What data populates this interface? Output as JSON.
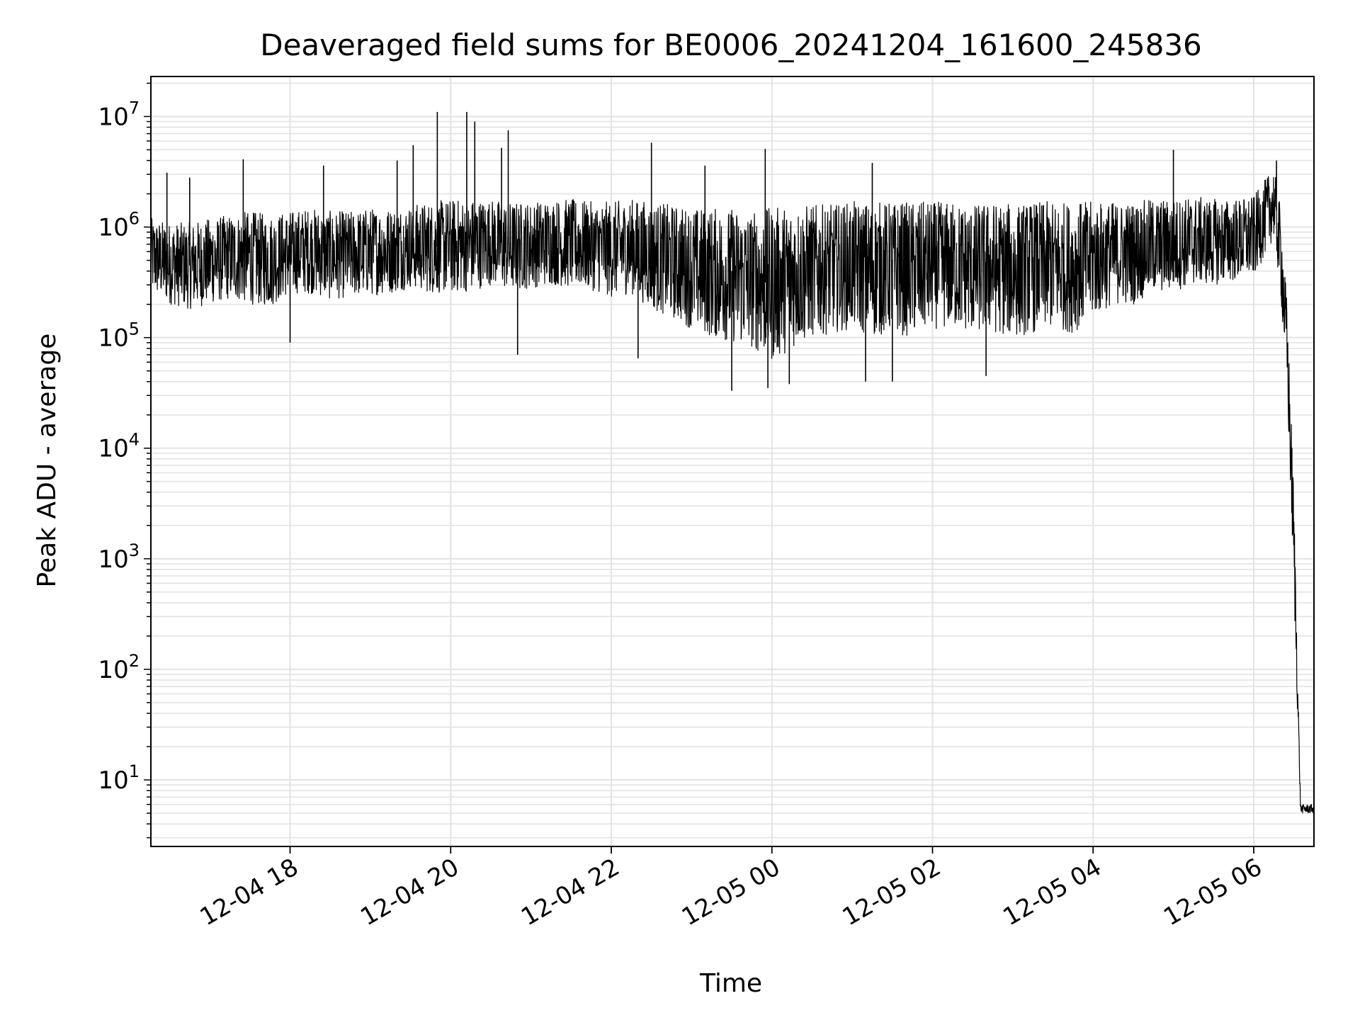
{
  "chart_data": {
    "type": "line",
    "title": "Deaveraged field sums for BE0006_20241204_161600_245836",
    "xlabel": "Time",
    "ylabel": "Peak ADU - average",
    "y_scale": "log",
    "grid": true,
    "legend": "none",
    "x_range": [
      "2024-12-04 16:16",
      "2024-12-05 06:45"
    ],
    "ylim": [
      2.5,
      23000000
    ],
    "x_tick_labels": [
      {
        "at": "2024-12-04 18:00",
        "label": "12-04 18"
      },
      {
        "at": "2024-12-04 20:00",
        "label": "12-04 20"
      },
      {
        "at": "2024-12-04 22:00",
        "label": "12-04 22"
      },
      {
        "at": "2024-12-05 00:00",
        "label": "12-05 00"
      },
      {
        "at": "2024-12-05 02:00",
        "label": "12-05 02"
      },
      {
        "at": "2024-12-05 04:00",
        "label": "12-05 04"
      },
      {
        "at": "2024-12-05 06:00",
        "label": "12-05 06"
      }
    ],
    "y_tick_labels": [
      {
        "base": "10",
        "exp": "1",
        "value": 10
      },
      {
        "base": "10",
        "exp": "2",
        "value": 100
      },
      {
        "base": "10",
        "exp": "3",
        "value": 1000
      },
      {
        "base": "10",
        "exp": "4",
        "value": 10000
      },
      {
        "base": "10",
        "exp": "5",
        "value": 100000
      },
      {
        "base": "10",
        "exp": "6",
        "value": 1000000
      },
      {
        "base": "10",
        "exp": "7",
        "value": 10000000
      }
    ],
    "series_color": "#000000",
    "series": [
      {
        "x": [
          "2024-12-04 16:16",
          "2024-12-04 16:30",
          "2024-12-04 16:45",
          "2024-12-04 17:00",
          "2024-12-04 17:15",
          "2024-12-04 17:30",
          "2024-12-04 17:45",
          "2024-12-04 18:00",
          "2024-12-04 18:15",
          "2024-12-04 18:30",
          "2024-12-04 18:45",
          "2024-12-04 19:00",
          "2024-12-04 19:15",
          "2024-12-04 19:30",
          "2024-12-04 19:45",
          "2024-12-04 20:00",
          "2024-12-04 20:15",
          "2024-12-04 20:30",
          "2024-12-04 20:45",
          "2024-12-04 21:00",
          "2024-12-04 21:15",
          "2024-12-04 21:30",
          "2024-12-04 21:45",
          "2024-12-04 22:00",
          "2024-12-04 22:15",
          "2024-12-04 22:30",
          "2024-12-04 22:45",
          "2024-12-04 23:00",
          "2024-12-04 23:15",
          "2024-12-04 23:30",
          "2024-12-04 23:45",
          "2024-12-05 00:00",
          "2024-12-05 00:15",
          "2024-12-05 00:30",
          "2024-12-05 00:45",
          "2024-12-05 01:00",
          "2024-12-05 01:15",
          "2024-12-05 01:30",
          "2024-12-05 01:45",
          "2024-12-05 02:00",
          "2024-12-05 02:15",
          "2024-12-05 02:30",
          "2024-12-05 02:45",
          "2024-12-05 03:00",
          "2024-12-05 03:15",
          "2024-12-05 03:30",
          "2024-12-05 03:45",
          "2024-12-05 04:00",
          "2024-12-05 04:15",
          "2024-12-05 04:30",
          "2024-12-05 04:45",
          "2024-12-05 05:00",
          "2024-12-05 05:15",
          "2024-12-05 05:30",
          "2024-12-05 05:45",
          "2024-12-05 06:00",
          "2024-12-05 06:15",
          "2024-12-05 06:20",
          "2024-12-05 06:25",
          "2024-12-05 06:30",
          "2024-12-05 06:35",
          "2024-12-05 06:40",
          "2024-12-05 06:45"
        ],
        "y": [
          600000,
          500000,
          450000,
          500000,
          550000,
          600000,
          550000,
          600000,
          650000,
          550000,
          600000,
          600000,
          650000,
          700000,
          650000,
          700000,
          700000,
          750000,
          700000,
          700000,
          750000,
          700000,
          700000,
          650000,
          700000,
          600000,
          500000,
          450000,
          400000,
          400000,
          350000,
          300000,
          400000,
          450000,
          450000,
          500000,
          500000,
          500000,
          450000,
          500000,
          500000,
          450000,
          500000,
          450000,
          500000,
          500000,
          450000,
          550000,
          600000,
          600000,
          650000,
          650000,
          700000,
          700000,
          750000,
          800000,
          2500000,
          600000,
          40000,
          900,
          5,
          5,
          5
        ],
        "y_low": [
          250000,
          200000,
          180000,
          200000,
          220000,
          200000,
          190000,
          250000,
          250000,
          220000,
          230000,
          240000,
          250000,
          280000,
          250000,
          250000,
          260000,
          300000,
          260000,
          280000,
          300000,
          280000,
          270000,
          230000,
          250000,
          180000,
          150000,
          120000,
          100000,
          90000,
          80000,
          60000,
          80000,
          100000,
          110000,
          120000,
          100000,
          110000,
          100000,
          120000,
          120000,
          110000,
          110000,
          100000,
          110000,
          120000,
          110000,
          150000,
          200000,
          200000,
          250000,
          260000,
          300000,
          300000,
          320000,
          350000,
          800000,
          250000,
          30000,
          500,
          5,
          5,
          5
        ],
        "y_high": [
          1200000,
          1100000,
          1100000,
          1200000,
          1300000,
          1400000,
          1300000,
          1400000,
          1500000,
          1400000,
          1400000,
          1500000,
          1500000,
          1600000,
          1700000,
          1800000,
          1800000,
          1800000,
          1700000,
          1700000,
          1800000,
          1800000,
          1700000,
          1700000,
          1800000,
          1700000,
          1600000,
          1500000,
          1500000,
          1500000,
          1400000,
          1500000,
          1600000,
          1600000,
          1600000,
          1700000,
          1700000,
          1700000,
          1700000,
          1700000,
          1700000,
          1600000,
          1700000,
          1600000,
          1700000,
          1700000,
          1700000,
          1700000,
          1700000,
          1700000,
          1800000,
          1800000,
          1900000,
          1800000,
          1800000,
          1900000,
          3500000,
          1500000,
          200000,
          4000,
          6,
          6,
          6
        ],
        "spikes": [
          {
            "x": "2024-12-04 16:28",
            "y": 3100000
          },
          {
            "x": "2024-12-04 16:45",
            "y": 2800000
          },
          {
            "x": "2024-12-04 17:25",
            "y": 4100000
          },
          {
            "x": "2024-12-04 18:25",
            "y": 3600000
          },
          {
            "x": "2024-12-04 19:20",
            "y": 4000000
          },
          {
            "x": "2024-12-04 19:32",
            "y": 5500000
          },
          {
            "x": "2024-12-04 19:50",
            "y": 11000000
          },
          {
            "x": "2024-12-04 20:12",
            "y": 11000000
          },
          {
            "x": "2024-12-04 20:18",
            "y": 9000000
          },
          {
            "x": "2024-12-04 20:38",
            "y": 5200000
          },
          {
            "x": "2024-12-04 20:43",
            "y": 7500000
          },
          {
            "x": "2024-12-04 22:30",
            "y": 5800000
          },
          {
            "x": "2024-12-04 23:10",
            "y": 3600000
          },
          {
            "x": "2024-12-04 23:55",
            "y": 5100000
          },
          {
            "x": "2024-12-05 01:15",
            "y": 3800000
          },
          {
            "x": "2024-12-05 05:00",
            "y": 5000000
          },
          {
            "x": "2024-12-05 06:17",
            "y": 4000000
          }
        ],
        "dips": [
          {
            "x": "2024-12-04 18:00",
            "y": 90000
          },
          {
            "x": "2024-12-04 20:50",
            "y": 70000
          },
          {
            "x": "2024-12-04 22:20",
            "y": 65000
          },
          {
            "x": "2024-12-04 23:30",
            "y": 33000
          },
          {
            "x": "2024-12-04 23:57",
            "y": 35000
          },
          {
            "x": "2024-12-05 00:13",
            "y": 38000
          },
          {
            "x": "2024-12-05 01:10",
            "y": 40000
          },
          {
            "x": "2024-12-05 01:30",
            "y": 40000
          },
          {
            "x": "2024-12-05 02:40",
            "y": 45000
          }
        ]
      }
    ]
  }
}
